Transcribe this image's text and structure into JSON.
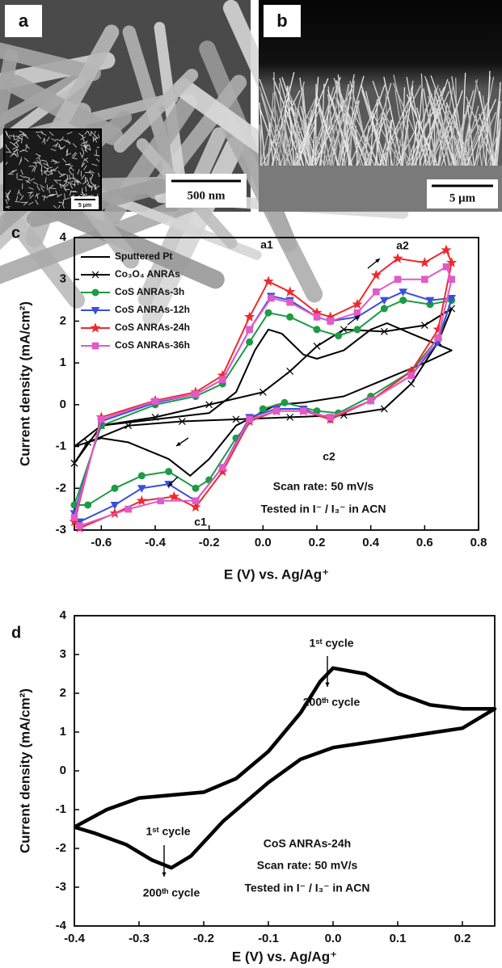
{
  "images": [
    {
      "label": "a",
      "scale_bar": "500 nm",
      "inset_scale_bar": "5 μm"
    },
    {
      "label": "b",
      "scale_bar": "5 μm"
    }
  ],
  "chart_data": [
    {
      "type": "line",
      "panel_label": "c",
      "xlabel": "E (V) vs. Ag/Ag⁺",
      "ylabel": "Current density (mA/cm²)",
      "xlim": [
        -0.7,
        0.8
      ],
      "ylim": [
        -3,
        4
      ],
      "xticks": [
        -0.6,
        -0.4,
        -0.2,
        {
          "value": 0,
          "label": "0.0"
        },
        0.2,
        0.4,
        0.6,
        0.8
      ],
      "yticks": [
        -3,
        -2,
        -1,
        0,
        1,
        2,
        3,
        4
      ],
      "annotations": [
        "a1",
        "a2",
        "c1",
        "c2",
        "Scan rate: 50 mV/s",
        "Tested in I⁻ / I₃⁻ in ACN"
      ],
      "series": [
        {
          "name": "Sputtered Pt",
          "color": "#000000",
          "marker": "none",
          "x": [
            -0.7,
            -0.6,
            -0.4,
            -0.2,
            -0.1,
            -0.03,
            0.02,
            0.07,
            0.15,
            0.2,
            0.3,
            0.4,
            0.46,
            0.55,
            0.7,
            0.6,
            0.45,
            0.3,
            0.15,
            0.05,
            -0.1,
            -0.2,
            -0.27,
            -0.35,
            -0.5,
            -0.6,
            -0.7
          ],
          "values": [
            -1.0,
            -0.5,
            -0.35,
            -0.2,
            0.3,
            1.3,
            1.8,
            1.7,
            1.2,
            1.1,
            1.3,
            1.8,
            1.95,
            1.7,
            1.3,
            1.0,
            0.6,
            0.2,
            0.05,
            0.0,
            -0.5,
            -1.3,
            -1.7,
            -1.3,
            -0.9,
            -0.8,
            -1.0
          ]
        },
        {
          "name": "Co₃O₄ ANRAs",
          "color": "#000000",
          "marker": "x",
          "x": [
            -0.7,
            -0.6,
            -0.4,
            -0.2,
            0.0,
            0.1,
            0.2,
            0.3,
            0.45,
            0.6,
            0.7,
            0.65,
            0.55,
            0.45,
            0.3,
            0.1,
            -0.1,
            -0.3,
            -0.5,
            -0.65,
            -0.7
          ],
          "values": [
            -1.4,
            -0.5,
            -0.3,
            0.0,
            0.3,
            0.8,
            1.4,
            1.8,
            1.75,
            1.9,
            2.3,
            1.5,
            0.5,
            -0.1,
            -0.25,
            -0.3,
            -0.35,
            -0.4,
            -0.5,
            -0.9,
            -1.4
          ]
        },
        {
          "name": "CoS ANRAs-3h",
          "color": "#1f9a45",
          "marker": "circle",
          "x": [
            -0.7,
            -0.6,
            -0.4,
            -0.25,
            -0.15,
            -0.05,
            0.02,
            0.1,
            0.2,
            0.28,
            0.35,
            0.45,
            0.52,
            0.62,
            0.7,
            0.65,
            0.55,
            0.4,
            0.28,
            0.2,
            0.08,
            0.0,
            -0.1,
            -0.2,
            -0.25,
            -0.35,
            -0.45,
            -0.55,
            -0.65,
            -0.7
          ],
          "values": [
            -2.4,
            -0.5,
            0.0,
            0.2,
            0.5,
            1.5,
            2.2,
            2.1,
            1.8,
            1.65,
            1.8,
            2.3,
            2.5,
            2.4,
            2.5,
            1.6,
            0.8,
            0.2,
            -0.2,
            -0.15,
            0.05,
            -0.1,
            -0.8,
            -1.8,
            -2.0,
            -1.6,
            -1.7,
            -2.0,
            -2.4,
            -2.4
          ]
        },
        {
          "name": "CoS ANRAs-12h",
          "color": "#3a4fd8",
          "marker": "triangle",
          "x": [
            -0.7,
            -0.6,
            -0.4,
            -0.25,
            -0.15,
            -0.05,
            0.03,
            0.1,
            0.2,
            0.25,
            0.35,
            0.45,
            0.52,
            0.62,
            0.7,
            0.65,
            0.55,
            0.4,
            0.25,
            0.15,
            0.05,
            -0.05,
            -0.15,
            -0.25,
            -0.35,
            -0.45,
            -0.55,
            -0.68
          ],
          "values": [
            -2.6,
            -0.4,
            0.05,
            0.25,
            0.6,
            1.8,
            2.6,
            2.5,
            2.1,
            2.0,
            2.1,
            2.5,
            2.7,
            2.5,
            2.55,
            1.5,
            0.7,
            0.1,
            -0.35,
            -0.1,
            -0.1,
            -0.3,
            -1.5,
            -2.3,
            -1.9,
            -2.0,
            -2.4,
            -2.8
          ]
        },
        {
          "name": "CoS ANRAs-24h",
          "color": "#ee2a2e",
          "marker": "star",
          "x": [
            -0.7,
            -0.6,
            -0.4,
            -0.25,
            -0.15,
            -0.05,
            0.02,
            0.1,
            0.2,
            0.25,
            0.35,
            0.42,
            0.5,
            0.6,
            0.68,
            0.7,
            0.65,
            0.55,
            0.4,
            0.25,
            0.15,
            0.05,
            -0.05,
            -0.15,
            -0.25,
            -0.33,
            -0.45,
            -0.55,
            -0.68
          ],
          "values": [
            -2.8,
            -0.3,
            0.1,
            0.3,
            0.7,
            2.1,
            2.95,
            2.7,
            2.2,
            2.1,
            2.4,
            3.1,
            3.5,
            3.4,
            3.7,
            3.4,
            1.8,
            0.8,
            0.1,
            -0.35,
            -0.15,
            -0.15,
            -0.4,
            -1.6,
            -2.45,
            -2.2,
            -2.3,
            -2.6,
            -2.95
          ]
        },
        {
          "name": "CoS ANRAs-36h",
          "color": "#e05ac8",
          "marker": "square",
          "x": [
            -0.7,
            -0.6,
            -0.4,
            -0.25,
            -0.15,
            -0.05,
            0.03,
            0.1,
            0.2,
            0.25,
            0.35,
            0.42,
            0.5,
            0.6,
            0.68,
            0.7,
            0.65,
            0.55,
            0.4,
            0.25,
            0.15,
            0.05,
            -0.05,
            -0.15,
            -0.25,
            -0.38,
            -0.5,
            -0.68
          ],
          "values": [
            -2.7,
            -0.35,
            0.08,
            0.25,
            0.6,
            1.8,
            2.55,
            2.45,
            2.1,
            2.0,
            2.2,
            2.7,
            3.0,
            3.0,
            3.3,
            3.0,
            1.6,
            0.7,
            0.1,
            -0.3,
            -0.15,
            -0.15,
            -0.35,
            -1.5,
            -2.3,
            -2.3,
            -2.5,
            -2.9
          ]
        }
      ]
    },
    {
      "type": "line",
      "panel_label": "d",
      "xlabel": "E (V) vs. Ag/Ag⁺",
      "ylabel": "Current density (mA/cm²)",
      "xlim": [
        -0.4,
        0.25
      ],
      "ylim": [
        -4,
        4
      ],
      "xticks": [
        -0.4,
        -0.3,
        -0.2,
        -0.1,
        {
          "value": 0,
          "label": "0.0"
        },
        0.1,
        0.2
      ],
      "yticks": [
        -4,
        -3,
        -2,
        -1,
        0,
        1,
        2,
        3,
        4
      ],
      "annotations": [
        "1ˢᵗ cycle",
        "200ᵗʰ cycle",
        "1ˢᵗ cycle",
        "200ᵗʰ cycle",
        "CoS ANRAs-24h",
        "Scan rate: 50 mV/s",
        "Tested in I⁻ / I₃⁻ in ACN"
      ],
      "series": [
        {
          "color": "#000000",
          "marker": "none",
          "x": [
            -0.4,
            -0.35,
            -0.3,
            -0.2,
            -0.15,
            -0.1,
            -0.05,
            -0.02,
            0.0,
            0.05,
            0.1,
            0.15,
            0.2,
            0.25,
            0.2,
            0.1,
            0.0,
            -0.05,
            -0.1,
            -0.17,
            -0.22,
            -0.25,
            -0.28,
            -0.32,
            -0.37,
            -0.4
          ],
          "values": [
            -1.45,
            -1.0,
            -0.7,
            -0.55,
            -0.2,
            0.5,
            1.5,
            2.3,
            2.65,
            2.5,
            2.0,
            1.7,
            1.6,
            1.6,
            1.1,
            0.85,
            0.6,
            0.3,
            -0.3,
            -1.3,
            -2.2,
            -2.5,
            -2.3,
            -1.9,
            -1.6,
            -1.45
          ]
        }
      ]
    }
  ]
}
